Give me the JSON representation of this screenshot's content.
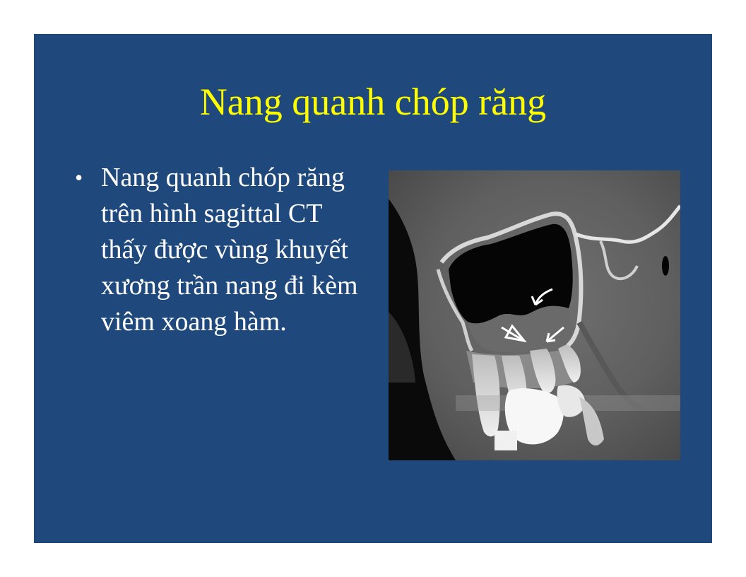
{
  "slide": {
    "background_color": "#1f497d",
    "title": "Nang quanh chóp răng",
    "title_color": "#ffff00",
    "bullets": [
      {
        "marker": "•",
        "text": "Nang quanh chóp răng trên hình sagittal CT thấy được vùng khuyết xương trần nang đi kèm viêm xoang hàm."
      }
    ],
    "image": {
      "kind": "sagittal CT scan of maxillary sinus and teeth",
      "annotations": [
        "curved-arrow-icon",
        "open-arrow-icon",
        "arrow-icon"
      ]
    }
  }
}
